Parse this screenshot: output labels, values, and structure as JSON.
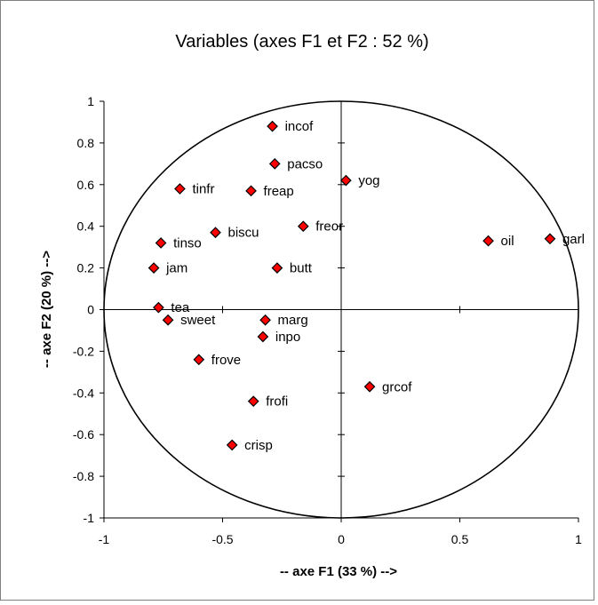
{
  "chart_data": {
    "type": "scatter",
    "title": "Variables (axes F1 et F2 : 52 %)",
    "xlabel": "-- axe F1 (33 %) -->",
    "ylabel": "-- axe F2 (20 %) -->",
    "xlim": [
      -1,
      1
    ],
    "ylim": [
      -1,
      1
    ],
    "xticks": [
      "-1",
      "-0.5",
      "0",
      "0.5",
      "1"
    ],
    "yticks": [
      "1",
      "0.8",
      "0.6",
      "0.4",
      "0.2",
      "0",
      "-0.2",
      "-0.4",
      "-0.6",
      "-0.8",
      "-1"
    ],
    "grid": false,
    "correlation_circle": true,
    "marker": "diamond",
    "marker_color": "#ff0000",
    "points": [
      {
        "label": "incof",
        "x": -0.29,
        "y": 0.88
      },
      {
        "label": "pacso",
        "x": -0.28,
        "y": 0.7
      },
      {
        "label": "yog",
        "x": 0.02,
        "y": 0.62
      },
      {
        "label": "tinfr",
        "x": -0.68,
        "y": 0.58
      },
      {
        "label": "freap",
        "x": -0.38,
        "y": 0.57
      },
      {
        "label": "freor",
        "x": -0.16,
        "y": 0.4
      },
      {
        "label": "biscu",
        "x": -0.53,
        "y": 0.37
      },
      {
        "label": "oil",
        "x": 0.62,
        "y": 0.33
      },
      {
        "label": "garl",
        "x": 0.88,
        "y": 0.34
      },
      {
        "label": "tinso",
        "x": -0.76,
        "y": 0.32
      },
      {
        "label": "jam",
        "x": -0.79,
        "y": 0.2
      },
      {
        "label": "butt",
        "x": -0.27,
        "y": 0.2
      },
      {
        "label": "tea",
        "x": -0.77,
        "y": 0.01
      },
      {
        "label": "sweet",
        "x": -0.73,
        "y": -0.05
      },
      {
        "label": "marg",
        "x": -0.32,
        "y": -0.05
      },
      {
        "label": "inpo",
        "x": -0.33,
        "y": -0.13
      },
      {
        "label": "frove",
        "x": -0.6,
        "y": -0.24
      },
      {
        "label": "grcof",
        "x": 0.12,
        "y": -0.37
      },
      {
        "label": "frofi",
        "x": -0.37,
        "y": -0.44
      },
      {
        "label": "crisp",
        "x": -0.46,
        "y": -0.65
      }
    ]
  }
}
